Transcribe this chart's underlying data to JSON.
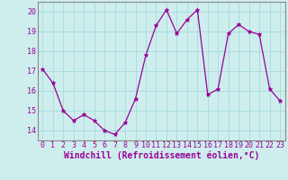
{
  "x": [
    0,
    1,
    2,
    3,
    4,
    5,
    6,
    7,
    8,
    9,
    10,
    11,
    12,
    13,
    14,
    15,
    16,
    17,
    18,
    19,
    20,
    21,
    22,
    23
  ],
  "y": [
    17.1,
    16.4,
    15.0,
    14.5,
    14.8,
    14.5,
    14.0,
    13.8,
    14.4,
    15.6,
    17.8,
    19.3,
    20.1,
    18.9,
    19.6,
    20.1,
    15.8,
    16.1,
    18.9,
    19.35,
    19.0,
    18.85,
    16.1,
    15.5
  ],
  "line_color": "#990099",
  "marker": "*",
  "marker_size": 3.5,
  "bg_color": "#ceeeed",
  "grid_color": "#aadddd",
  "xlabel": "Windchill (Refroidissement éolien,°C)",
  "xlabel_fontsize": 7,
  "ylim": [
    13.5,
    20.5
  ],
  "xlim": [
    -0.5,
    23.5
  ],
  "yticks": [
    14,
    15,
    16,
    17,
    18,
    19,
    20
  ],
  "xticks": [
    0,
    1,
    2,
    3,
    4,
    5,
    6,
    7,
    8,
    9,
    10,
    11,
    12,
    13,
    14,
    15,
    16,
    17,
    18,
    19,
    20,
    21,
    22,
    23
  ],
  "tick_fontsize": 6,
  "spine_color": "#888888"
}
